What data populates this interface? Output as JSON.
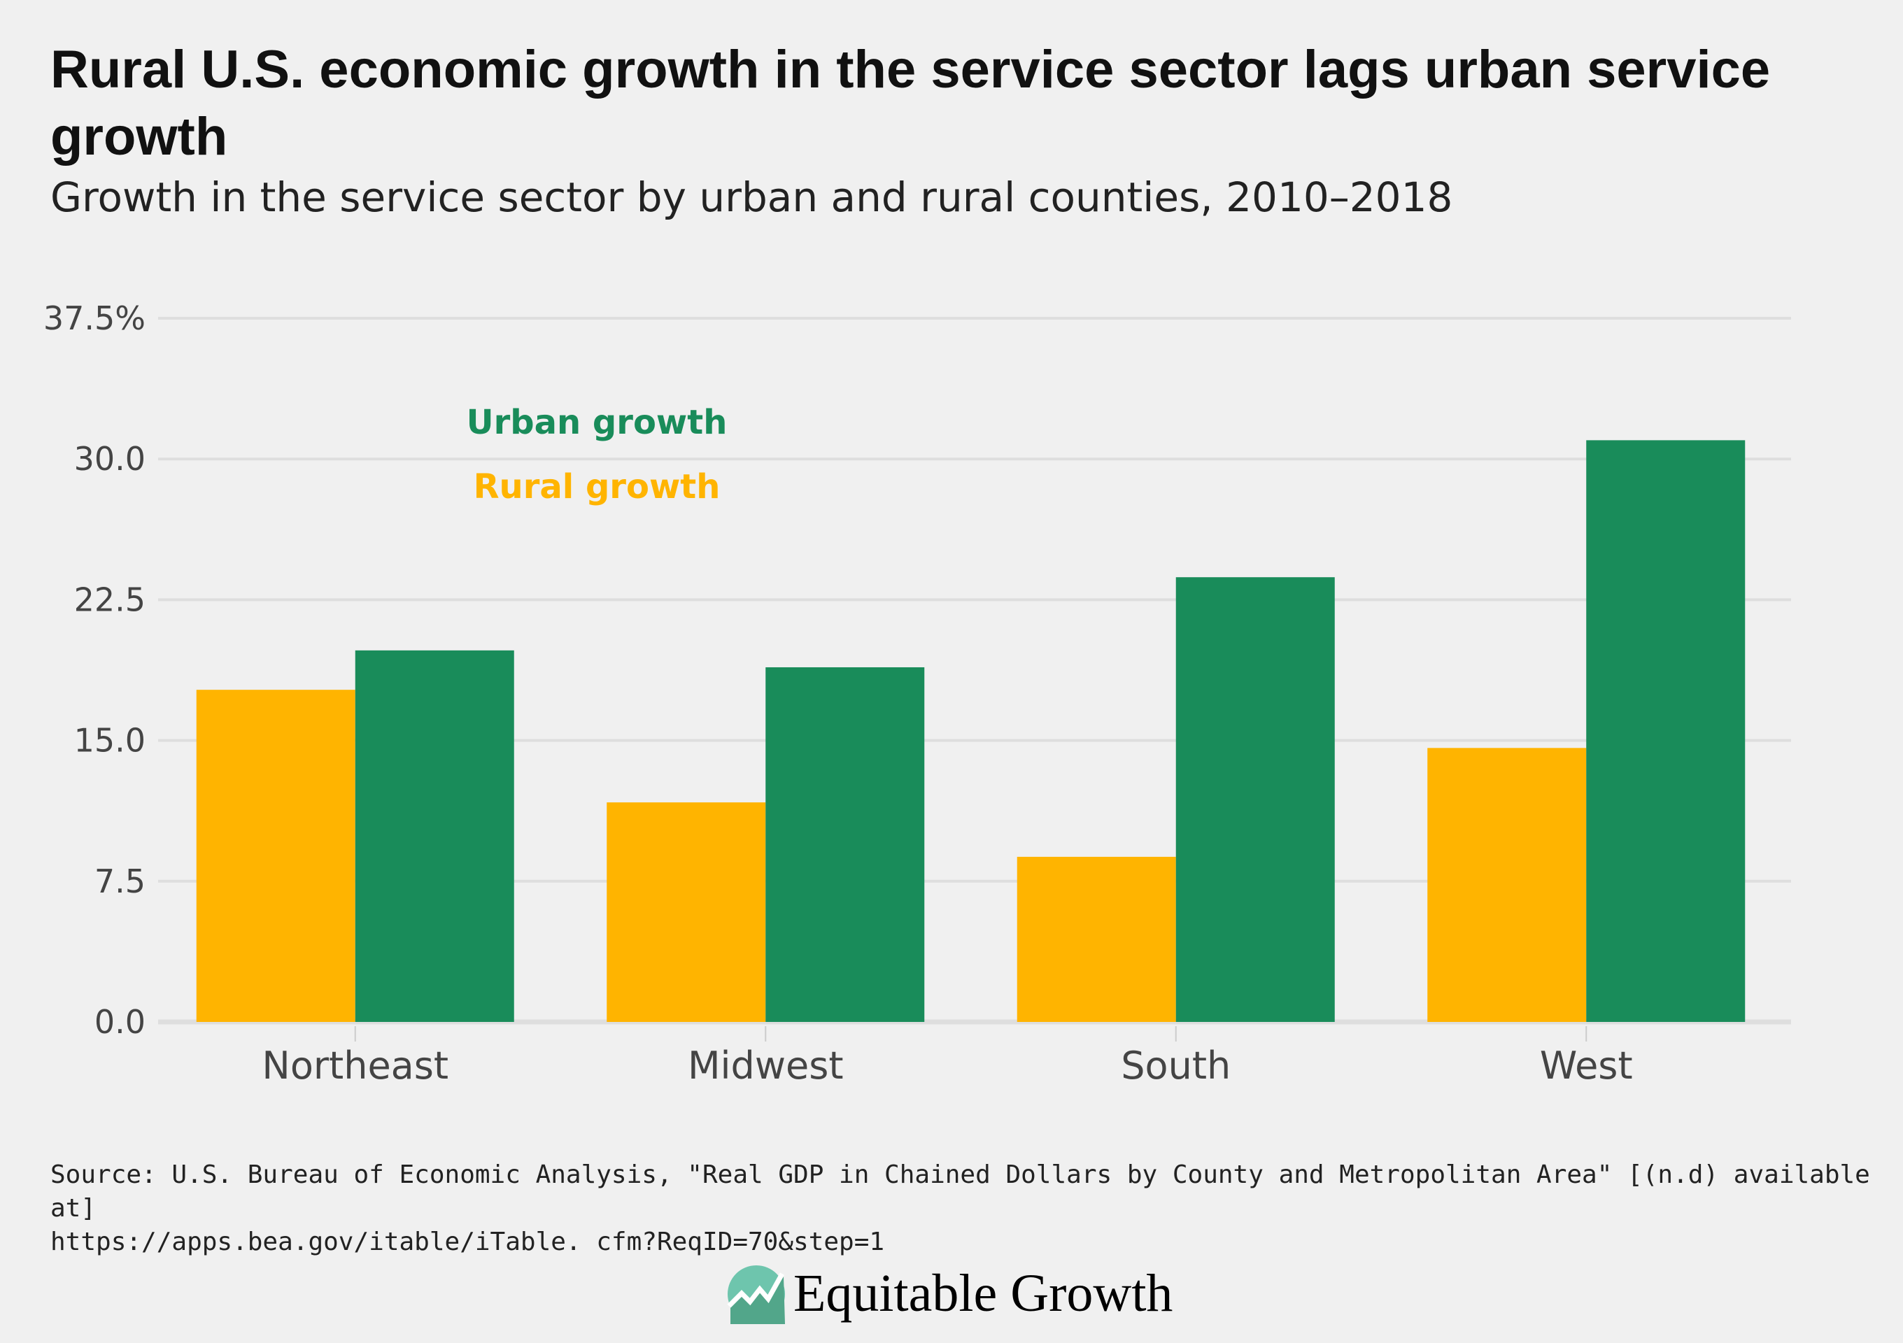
{
  "title": "Rural U.S. economic growth in the service sector lags urban service growth",
  "subtitle": "Growth in the service sector by urban and rural counties, 2010–2018",
  "source_lines": [
    "Source: U.S. Bureau of Economic Analysis, \"Real GDP in Chained Dollars by County and Metropolitan Area\" [(n.d) available at]",
    "https://apps.bea.gov/itable/iTable. cfm?ReqID=70&step=1"
  ],
  "logo_text": "Equitable Growth",
  "chart_data": {
    "type": "bar",
    "title": "Rural U.S. economic growth in the service sector lags urban service growth",
    "subtitle": "Growth in the service sector by urban and rural counties, 2010–2018",
    "categories": [
      "Northeast",
      "Midwest",
      "South",
      "West"
    ],
    "series": [
      {
        "name": "Rural growth",
        "color": "#ffb400",
        "values": [
          17.7,
          11.7,
          8.8,
          14.6
        ]
      },
      {
        "name": "Urban growth",
        "color": "#198c5a",
        "values": [
          19.8,
          18.9,
          23.7,
          31.0
        ]
      }
    ],
    "ylim": [
      0,
      37.5
    ],
    "yticks": [
      0,
      7.5,
      15,
      22.5,
      30,
      37.5
    ],
    "ytick_labels": [
      "0.0",
      "7.5",
      "15.0",
      "22.5",
      "30.0",
      "37.5%"
    ],
    "grid": true,
    "legend_order": [
      "Urban growth",
      "Rural growth"
    ],
    "legend_placement": "top-left"
  }
}
